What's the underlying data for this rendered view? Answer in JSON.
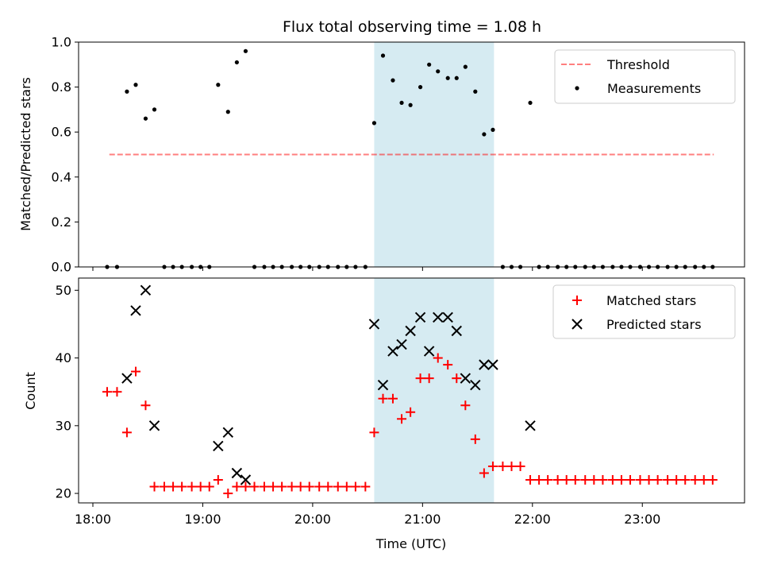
{
  "chart_data": [
    {
      "type": "scatter",
      "title": "Flux total observing time = 1.08 h",
      "ylabel": "Matched/Predicted stars",
      "ylim": [
        0,
        1.0
      ],
      "yticks": [
        "0.0",
        "0.2",
        "0.4",
        "0.6",
        "0.8",
        "1.0"
      ],
      "ytick_values": [
        0,
        0.2,
        0.4,
        0.6,
        0.8,
        1.0
      ],
      "legend_position": "top-right",
      "highlight_band": {
        "x_start": 20.56,
        "x_end": 21.65,
        "color": "#add8e6"
      },
      "threshold": {
        "name": "Threshold",
        "value": 0.5,
        "x_start": 18.15,
        "x_end": 23.65,
        "color": "#ff0000"
      },
      "measurements": {
        "name": "Measurements",
        "x": [
          18.13,
          18.22,
          18.31,
          18.39,
          18.48,
          18.56,
          18.65,
          18.73,
          18.81,
          18.9,
          18.98,
          19.06,
          19.14,
          19.23,
          19.31,
          19.39,
          19.47,
          19.56,
          19.64,
          19.72,
          19.81,
          19.89,
          19.97,
          20.06,
          20.14,
          20.23,
          20.31,
          20.39,
          20.48,
          20.56,
          20.64,
          20.73,
          20.81,
          20.89,
          20.98,
          21.06,
          21.14,
          21.23,
          21.31,
          21.39,
          21.48,
          21.56,
          21.64,
          21.73,
          21.81,
          21.89,
          21.98,
          22.06,
          22.14,
          22.23,
          22.31,
          22.39,
          22.48,
          22.56,
          22.64,
          22.73,
          22.81,
          22.89,
          22.98,
          23.06,
          23.14,
          23.23,
          23.31,
          23.39,
          23.48,
          23.56,
          23.64
        ],
        "y": [
          0,
          0,
          0.78,
          0.81,
          0.66,
          0.7,
          0,
          0,
          0,
          0,
          0,
          0,
          0.81,
          0.69,
          0.91,
          0.96,
          0,
          0,
          0,
          0,
          0,
          0,
          0,
          0,
          0,
          0,
          0,
          0,
          0,
          0.64,
          0.94,
          0.83,
          0.73,
          0.72,
          0.8,
          0.9,
          0.87,
          0.84,
          0.84,
          0.89,
          0.78,
          0.59,
          0.61,
          0,
          0,
          0,
          0.73,
          0,
          0,
          0,
          0,
          0,
          0,
          0,
          0,
          0,
          0,
          0,
          0,
          0,
          0,
          0,
          0,
          0,
          0,
          0,
          0
        ]
      }
    },
    {
      "type": "scatter",
      "xlabel": "Time (UTC)",
      "ylabel": "Count",
      "ylim": [
        18.6,
        51.8
      ],
      "yticks": [
        "20",
        "30",
        "40",
        "50"
      ],
      "ytick_values": [
        20,
        30,
        40,
        50
      ],
      "xticks": [
        "18:00",
        "19:00",
        "20:00",
        "21:00",
        "22:00",
        "23:00"
      ],
      "xtick_values": [
        18,
        19,
        20,
        21,
        22,
        23
      ],
      "xlim": [
        17.87,
        23.93
      ],
      "legend_position": "top-right",
      "highlight_band": {
        "x_start": 20.56,
        "x_end": 21.65,
        "color": "#add8e6"
      },
      "series": [
        {
          "name": "Matched stars",
          "marker": "plus",
          "color": "#ff0000",
          "x": [
            18.13,
            18.22,
            18.31,
            18.39,
            18.48,
            18.56,
            18.65,
            18.73,
            18.81,
            18.9,
            18.98,
            19.06,
            19.14,
            19.23,
            19.31,
            19.39,
            19.47,
            19.56,
            19.64,
            19.72,
            19.81,
            19.89,
            19.97,
            20.06,
            20.14,
            20.23,
            20.31,
            20.39,
            20.48,
            20.56,
            20.64,
            20.73,
            20.81,
            20.89,
            20.98,
            21.06,
            21.14,
            21.23,
            21.31,
            21.39,
            21.48,
            21.56,
            21.64,
            21.73,
            21.81,
            21.89,
            21.98,
            22.06,
            22.14,
            22.23,
            22.31,
            22.39,
            22.48,
            22.56,
            22.64,
            22.73,
            22.81,
            22.89,
            22.98,
            23.06,
            23.14,
            23.23,
            23.31,
            23.39,
            23.48,
            23.56,
            23.64
          ],
          "y": [
            35,
            35,
            29,
            38,
            33,
            21,
            21,
            21,
            21,
            21,
            21,
            21,
            22,
            20,
            21,
            21,
            21,
            21,
            21,
            21,
            21,
            21,
            21,
            21,
            21,
            21,
            21,
            21,
            21,
            29,
            34,
            34,
            31,
            32,
            37,
            37,
            40,
            39,
            37,
            33,
            28,
            23,
            24,
            24,
            24,
            24,
            22,
            22,
            22,
            22,
            22,
            22,
            22,
            22,
            22,
            22,
            22,
            22,
            22,
            22,
            22,
            22,
            22,
            22,
            22,
            22,
            22
          ]
        },
        {
          "name": "Predicted stars",
          "marker": "x",
          "color": "#000000",
          "x": [
            18.31,
            18.39,
            18.48,
            18.56,
            19.14,
            19.23,
            19.31,
            19.39,
            20.56,
            20.64,
            20.73,
            20.81,
            20.89,
            20.98,
            21.06,
            21.14,
            21.23,
            21.31,
            21.39,
            21.48,
            21.56,
            21.64,
            21.98
          ],
          "y": [
            37,
            47,
            50,
            30,
            27,
            29,
            23,
            22,
            45,
            36,
            41,
            42,
            44,
            46,
            41,
            46,
            46,
            44,
            37,
            36,
            39,
            39,
            30
          ]
        }
      ]
    }
  ]
}
